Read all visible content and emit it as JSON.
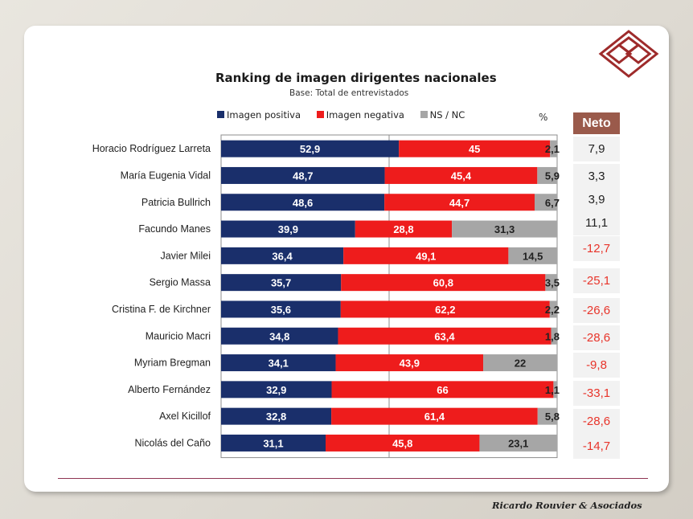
{
  "chart_data": {
    "type": "bar",
    "orientation": "horizontal",
    "stacked": true,
    "title": "Ranking de imagen dirigentes nacionales",
    "subtitle": "Base: Total de entrevistados",
    "unit": "%",
    "xlim": [
      0,
      100
    ],
    "categories": [
      "Horacio Rodríguez Larreta",
      "María Eugenia Vidal",
      "Patricia Bullrich",
      "Facundo Manes",
      "Javier Milei",
      "Sergio Massa",
      "Cristina F. de Kirchner",
      "Mauricio Macri",
      "Myriam Bregman",
      "Alberto Fernández",
      "Axel Kicillof",
      "Nicolás del Caño"
    ],
    "series": [
      {
        "name": "Imagen positiva",
        "color": "#1a2f6b",
        "values": [
          52.9,
          48.7,
          48.6,
          39.9,
          36.4,
          35.7,
          35.6,
          34.8,
          34.1,
          32.9,
          32.8,
          31.1
        ],
        "labels": [
          "52,9",
          "48,7",
          "48,6",
          "39,9",
          "36,4",
          "35,7",
          "35,6",
          "34,8",
          "34,1",
          "32,9",
          "32,8",
          "31,1"
        ]
      },
      {
        "name": "Imagen negativa",
        "color": "#ee1c1c",
        "values": [
          45,
          45.4,
          44.7,
          28.8,
          49.1,
          60.8,
          62.2,
          63.4,
          43.9,
          66,
          61.4,
          45.8
        ],
        "labels": [
          "45",
          "45,4",
          "44,7",
          "28,8",
          "49,1",
          "60,8",
          "62,2",
          "63,4",
          "43,9",
          "66",
          "61,4",
          "45,8"
        ]
      },
      {
        "name": "NS / NC",
        "color": "#a6a6a6",
        "values": [
          2.1,
          5.9,
          6.7,
          31.3,
          14.5,
          3.5,
          2.2,
          1.8,
          22,
          1.1,
          5.8,
          23.1
        ],
        "labels": [
          "2,1",
          "5,9",
          "6,7",
          "31,3",
          "14,5",
          "3,5",
          "2,2",
          "1,8",
          "22",
          "1,1",
          "5,8",
          "23,1"
        ]
      }
    ],
    "neto": {
      "header": "Neto",
      "values": [
        "7,9",
        "3,3",
        "3,9",
        "11,1",
        "-12,7",
        "-25,1",
        "-26,6",
        "-28,6",
        "-9,8",
        "-33,1",
        "-28,6",
        "-14,7"
      ]
    },
    "colors": {
      "positive": "#1a2f6b",
      "negative": "#ee1c1c",
      "nsnc": "#a6a6a6",
      "neto_header": "#9a5a4b",
      "neto_negative": "#e8342a"
    }
  },
  "footer": {
    "credit": "Ricardo Rouvier & Asociados"
  }
}
